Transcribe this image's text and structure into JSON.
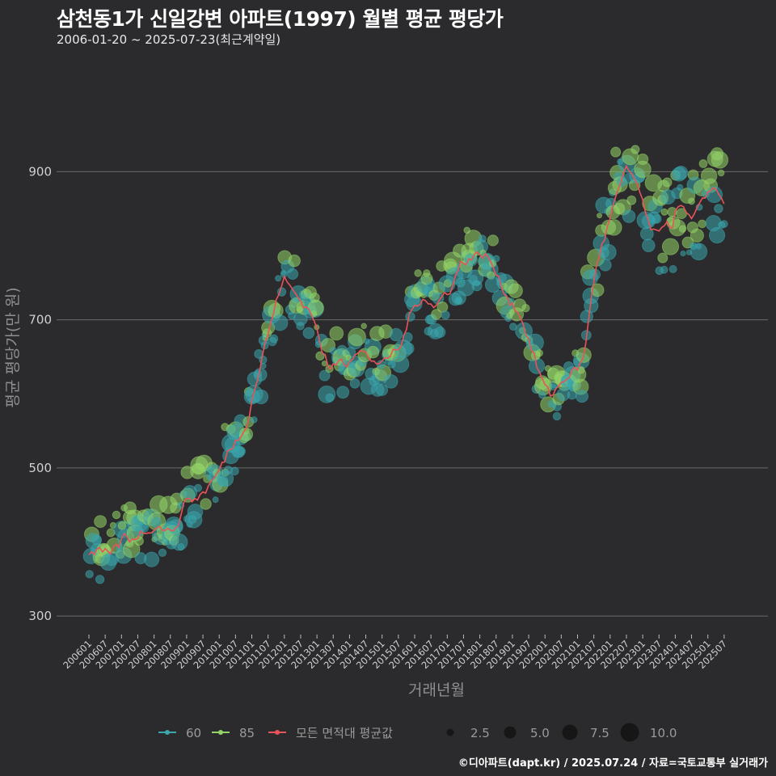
{
  "title": "삼천동1가 신일강변 아파트(1997) 월별 평균 평당가",
  "subtitle": "2006-01-20 ~ 2025-07-23(최근계약일)",
  "credit": "©디아파트(dapt.kr) / 2025.07.24 / 자료=국토교통부 실거래가",
  "colors": {
    "s60": "#3aa6ad",
    "s85": "#93d468",
    "avg": "#e8545a",
    "grid": "#6a6a6a"
  },
  "chart_data": {
    "type": "scatter",
    "title": "삼천동1가 신일강변 아파트(1997) 월별 평균 평당가",
    "xlabel": "거래년월",
    "ylabel": "평균 평당가(만 원)",
    "ylim": [
      275,
      1050
    ],
    "yticks": [
      300,
      500,
      700,
      900
    ],
    "xticks": [
      "200601",
      "200607",
      "200701",
      "200707",
      "200801",
      "200807",
      "200901",
      "200907",
      "201001",
      "201007",
      "201101",
      "201107",
      "201201",
      "201207",
      "201301",
      "201307",
      "201401",
      "201407",
      "201501",
      "201507",
      "201601",
      "201607",
      "201701",
      "201707",
      "201801",
      "201807",
      "201901",
      "201907",
      "202001",
      "202007",
      "202101",
      "202107",
      "202201",
      "202207",
      "202301",
      "202307",
      "202401",
      "202407",
      "202501",
      "202507"
    ],
    "legend": {
      "series": [
        "60",
        "85",
        "모든 면적대 평균값"
      ],
      "size_title": "",
      "sizes": [
        "2.5",
        "5.0",
        "7.5",
        "10.0"
      ]
    },
    "avg_anchors": [
      [
        2006.0,
        380
      ],
      [
        2006.3,
        388
      ],
      [
        2006.6,
        385
      ],
      [
        2006.9,
        395
      ],
      [
        2007.1,
        410
      ],
      [
        2007.3,
        402
      ],
      [
        2007.6,
        412
      ],
      [
        2008.0,
        418
      ],
      [
        2008.3,
        420
      ],
      [
        2008.5,
        412
      ],
      [
        2008.8,
        430
      ],
      [
        2009.0,
        462
      ],
      [
        2009.2,
        455
      ],
      [
        2009.6,
        470
      ],
      [
        2009.9,
        490
      ],
      [
        2010.1,
        505
      ],
      [
        2010.3,
        525
      ],
      [
        2010.6,
        540
      ],
      [
        2010.9,
        565
      ],
      [
        2011.0,
        590
      ],
      [
        2011.2,
        625
      ],
      [
        2011.4,
        665
      ],
      [
        2011.7,
        715
      ],
      [
        2011.9,
        748
      ],
      [
        2012.0,
        755
      ],
      [
        2012.3,
        738
      ],
      [
        2012.6,
        720
      ],
      [
        2012.9,
        705
      ],
      [
        2013.1,
        665
      ],
      [
        2013.4,
        632
      ],
      [
        2013.7,
        650
      ],
      [
        2013.9,
        640
      ],
      [
        2014.1,
        650
      ],
      [
        2014.4,
        658
      ],
      [
        2014.7,
        645
      ],
      [
        2015.0,
        640
      ],
      [
        2015.3,
        655
      ],
      [
        2015.6,
        665
      ],
      [
        2015.8,
        700
      ],
      [
        2016.0,
        720
      ],
      [
        2016.3,
        730
      ],
      [
        2016.6,
        715
      ],
      [
        2016.9,
        735
      ],
      [
        2017.1,
        740
      ],
      [
        2017.4,
        775
      ],
      [
        2017.7,
        782
      ],
      [
        2018.0,
        790
      ],
      [
        2018.3,
        782
      ],
      [
        2018.6,
        752
      ],
      [
        2018.9,
        725
      ],
      [
        2019.2,
        710
      ],
      [
        2019.5,
        672
      ],
      [
        2019.8,
        632
      ],
      [
        2020.0,
        610
      ],
      [
        2020.2,
        598
      ],
      [
        2020.5,
        615
      ],
      [
        2020.8,
        628
      ],
      [
        2021.0,
        635
      ],
      [
        2021.2,
        648
      ],
      [
        2021.3,
        690
      ],
      [
        2021.6,
        780
      ],
      [
        2021.9,
        820
      ],
      [
        2022.1,
        855
      ],
      [
        2022.3,
        880
      ],
      [
        2022.5,
        905
      ],
      [
        2022.7,
        895
      ],
      [
        2022.9,
        875
      ],
      [
        2023.1,
        840
      ],
      [
        2023.3,
        820
      ],
      [
        2023.5,
        815
      ],
      [
        2023.7,
        835
      ],
      [
        2023.9,
        825
      ],
      [
        2024.1,
        860
      ],
      [
        2024.3,
        845
      ],
      [
        2024.5,
        835
      ],
      [
        2024.7,
        850
      ],
      [
        2024.9,
        865
      ],
      [
        2025.1,
        880
      ],
      [
        2025.3,
        872
      ],
      [
        2025.5,
        860
      ]
    ]
  }
}
